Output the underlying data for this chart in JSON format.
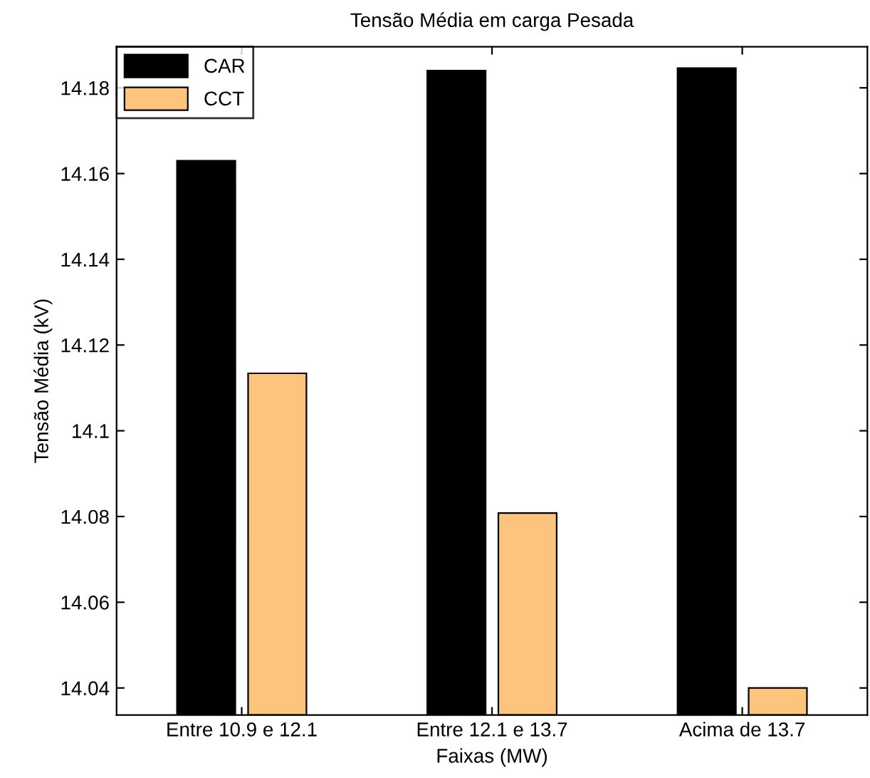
{
  "chart_data": {
    "type": "bar",
    "title": "Tensão Média em carga Pesada",
    "xlabel": "Faixas (MW)",
    "ylabel": "Tensão Média (kV)",
    "categories": [
      "Entre 10.9 e 12.1",
      "Entre 12.1 e 13.7",
      "Acima de 13.7"
    ],
    "series": [
      {
        "name": "CAR",
        "color": "#000000",
        "values": [
          14.163,
          14.184,
          14.1846
        ]
      },
      {
        "name": "CCT",
        "color": "#fdc47d",
        "values": [
          14.1134,
          14.0808,
          14.04
        ]
      }
    ],
    "ylim": [
      14.0337,
      14.1896
    ],
    "yticks": [
      14.04,
      14.06,
      14.08,
      14.1,
      14.12,
      14.14,
      14.16,
      14.18
    ],
    "grid": false,
    "legend": "top left"
  }
}
